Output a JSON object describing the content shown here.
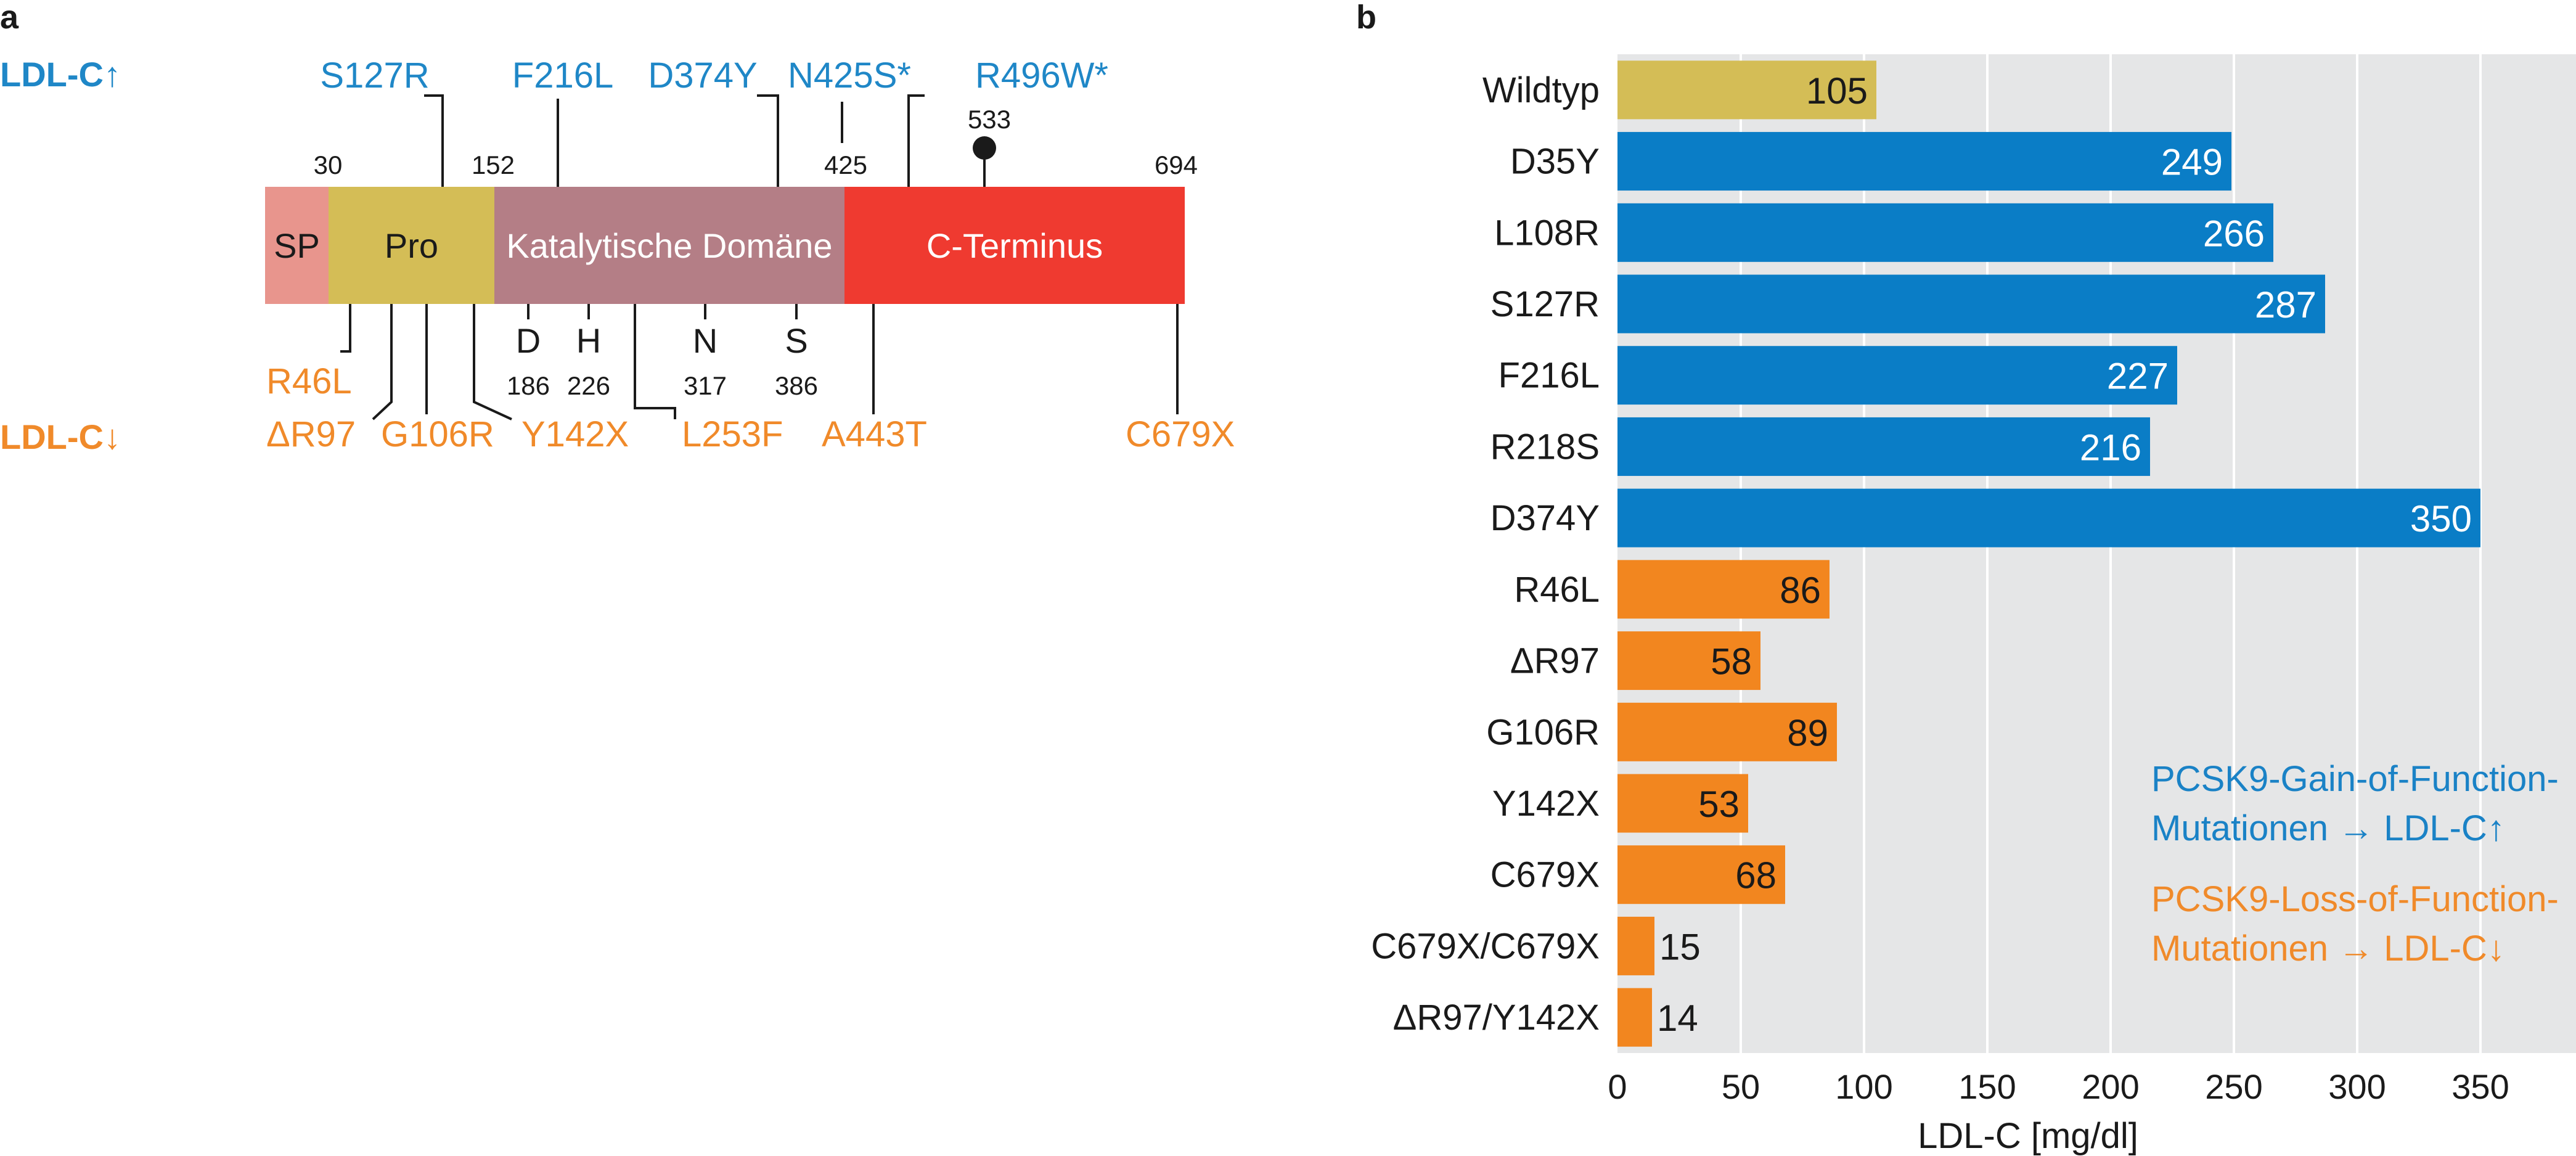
{
  "panel_a": {
    "label": "a",
    "legend_up": "LDL-C↑",
    "legend_down": "LDL-C↓",
    "domains": [
      {
        "name": "SP",
        "start": 1,
        "end": 30,
        "color": "#e8958d",
        "text_color": "#1a1a1a"
      },
      {
        "name": "Pro",
        "start": 30,
        "end": 152,
        "color": "#d4bd56",
        "text_color": "#1a1a1a"
      },
      {
        "name": "Katalytische Domäne",
        "start": 152,
        "end": 425,
        "color": "#b47e86",
        "text_color": "#ffffff"
      },
      {
        "name": "C-Terminus",
        "start": 425,
        "end": 694,
        "color": "#ef3a30",
        "text_color": "#ffffff"
      }
    ],
    "boundaries": [
      "30",
      "152",
      "425",
      "694"
    ],
    "site_533": "533",
    "gain_mutations": [
      "S127R",
      "F216L",
      "D374Y",
      "N425S*",
      "R496W*"
    ],
    "catalytic_residues": [
      {
        "letter": "D",
        "pos": "186"
      },
      {
        "letter": "H",
        "pos": "226"
      },
      {
        "letter": "N",
        "pos": "317"
      },
      {
        "letter": "S",
        "pos": "386"
      }
    ],
    "loss_mutations": [
      "R46L",
      "ΔR97",
      "G106R",
      "Y142X",
      "L253F",
      "A443T",
      "C679X"
    ],
    "colors": {
      "gain": "#1f87c7",
      "loss": "#f08a2a"
    }
  },
  "panel_b": {
    "label": "b",
    "legend_gain": [
      "PCSK9-Gain-of-Function-",
      "Mutationen → LDL-C↑"
    ],
    "legend_loss": [
      "PCSK9-Loss-of-Function-",
      "Mutationen → LDL-C↓"
    ]
  },
  "chart_data": {
    "type": "bar",
    "orientation": "horizontal",
    "categories": [
      "Wildtyp",
      "D35Y",
      "L108R",
      "S127R",
      "F216L",
      "R218S",
      "D374Y",
      "R46L",
      "ΔR97",
      "G106R",
      "Y142X",
      "C679X",
      "C679X/C679X",
      "ΔR97/Y142X"
    ],
    "values": [
      105,
      249,
      266,
      287,
      227,
      216,
      350,
      86,
      58,
      89,
      53,
      68,
      15,
      14
    ],
    "groups": [
      "wildtype",
      "gain",
      "gain",
      "gain",
      "gain",
      "gain",
      "gain",
      "loss",
      "loss",
      "loss",
      "loss",
      "loss",
      "loss",
      "loss"
    ],
    "xlabel": "LDL-C [mg/dl]",
    "xlim": [
      0,
      388
    ],
    "xticks": [
      0,
      50,
      100,
      150,
      200,
      250,
      300,
      350
    ],
    "grid": true,
    "background": "#e5e6e7",
    "colors": {
      "wildtype": "#d4bd56",
      "gain": "#0a7dc6",
      "loss": "#f2861f"
    },
    "legend_position": "bottom-right"
  }
}
